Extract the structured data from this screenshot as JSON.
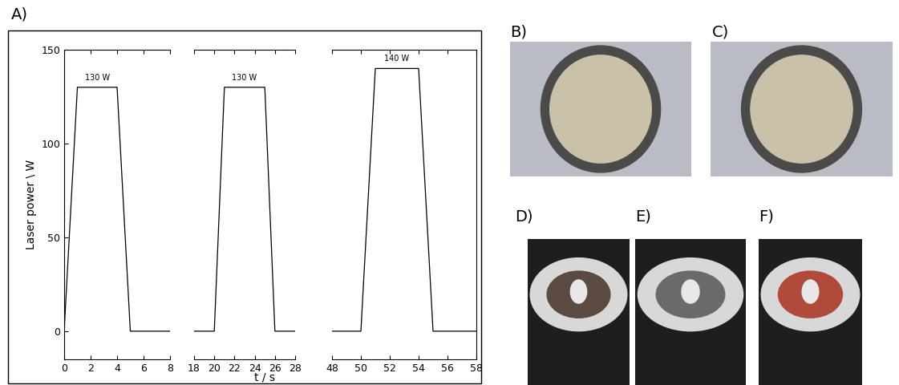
{
  "panel_labels": [
    "A)",
    "B)",
    "C)",
    "D)",
    "E)",
    "F)"
  ],
  "chart_data": {
    "type": "line",
    "x_label": "t / s",
    "y_label": "Laser power \\ W",
    "color": "#000000",
    "ylim": [
      -15,
      150
    ],
    "yticks": [
      0,
      50,
      100,
      150
    ],
    "segments": [
      {
        "xlim": [
          0,
          8
        ],
        "xticks": [
          0,
          2,
          4,
          6,
          8
        ],
        "x": [
          0,
          1,
          4,
          5,
          8
        ],
        "values": [
          0,
          130,
          130,
          0,
          0
        ],
        "annotation": "130 W"
      },
      {
        "xlim": [
          18,
          28
        ],
        "xticks": [
          18,
          20,
          22,
          24,
          26,
          28
        ],
        "x": [
          18,
          20,
          21,
          25,
          26,
          28
        ],
        "values": [
          0,
          0,
          130,
          130,
          0,
          0
        ],
        "annotation": "130 W"
      },
      {
        "xlim": [
          48,
          58
        ],
        "xticks": [
          48,
          50,
          52,
          54,
          56,
          58
        ],
        "x": [
          48,
          50,
          51,
          54,
          55,
          58
        ],
        "values": [
          0,
          0,
          140,
          140,
          0,
          0
        ],
        "annotation": "140 W"
      }
    ]
  }
}
